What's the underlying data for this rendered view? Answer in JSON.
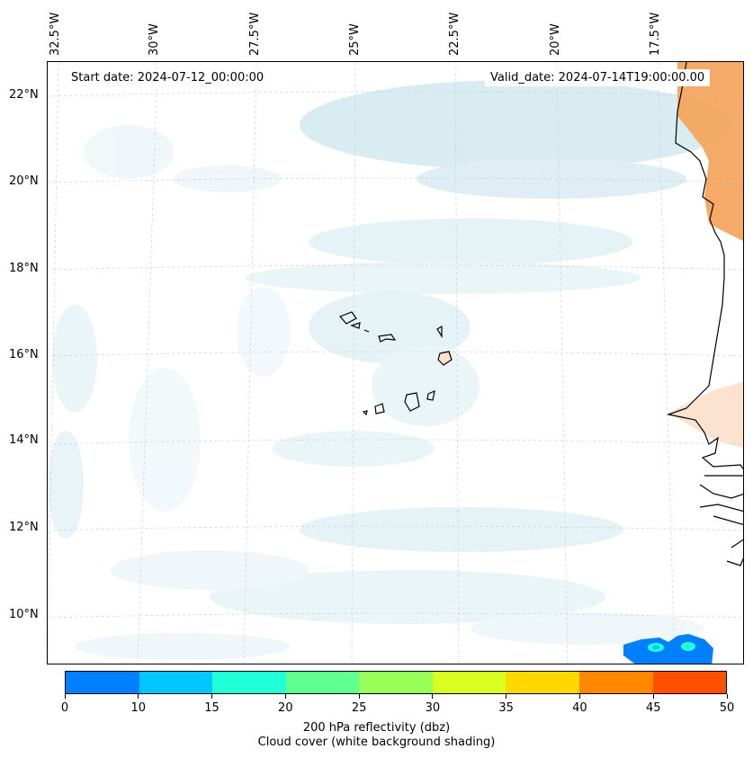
{
  "header": {
    "start_date": "Start date: 2024-07-12_00:00:00",
    "valid_date": "Valid_date: 2024-07-14T19:00:00.00"
  },
  "lon_labels": [
    "32.5°W",
    "30°W",
    "27.5°W",
    "25°W",
    "22.5°W",
    "20°W",
    "17.5°W"
  ],
  "lat_labels": [
    "22°N",
    "20°N",
    "18°N",
    "16°N",
    "14°N",
    "12°N",
    "10°N"
  ],
  "colorbar": {
    "ticks": [
      "0",
      "10",
      "15",
      "20",
      "25",
      "30",
      "35",
      "40",
      "45",
      "50"
    ],
    "colors": [
      "#0080ff",
      "#00c8ff",
      "#20ffd8",
      "#60ff90",
      "#98ff58",
      "#d8ff20",
      "#ffd800",
      "#ff8800",
      "#ff5000"
    ],
    "label_line1": "200 hPa reflectivity (dbz)",
    "label_line2": "Cloud cover (white background shading)"
  },
  "map_colors": {
    "cloud_light": "#e3f1f6",
    "cloud_mid": "#cfe7ef",
    "land_warm": "#f4a65f",
    "land_light": "#fbe3cf",
    "coast": "#000000"
  }
}
